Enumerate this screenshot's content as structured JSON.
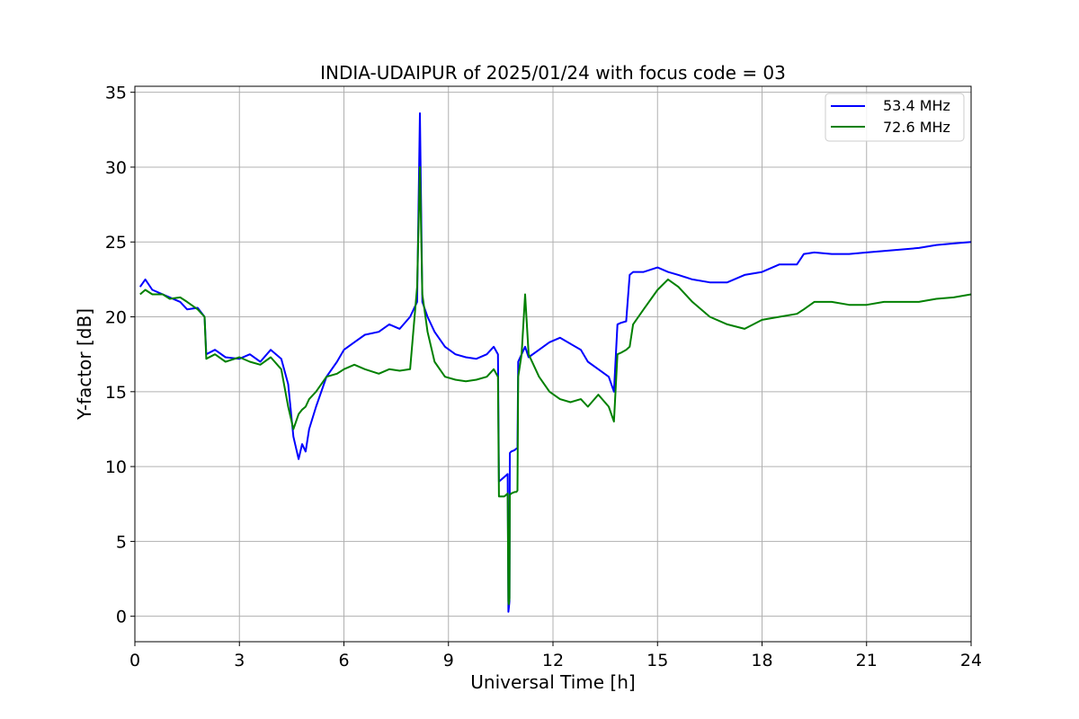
{
  "chart_data": {
    "type": "line",
    "title": "INDIA-UDAIPUR of 2025/01/24 with focus code = 03",
    "xlabel": "Universal Time [h]",
    "ylabel": "Y-factor [dB]",
    "xlim": [
      0,
      24
    ],
    "ylim": [
      -1.7,
      35.4
    ],
    "xticks": [
      0,
      3,
      6,
      9,
      12,
      15,
      18,
      21,
      24
    ],
    "yticks": [
      0,
      5,
      10,
      15,
      20,
      25,
      30,
      35
    ],
    "grid": true,
    "legend_position": "top-right",
    "series": [
      {
        "name": "53.4 MHz",
        "color": "#0000ff",
        "x": [
          0.15,
          0.3,
          0.5,
          0.8,
          1.0,
          1.3,
          1.5,
          1.8,
          2.0,
          2.05,
          2.3,
          2.6,
          3.0,
          3.3,
          3.6,
          3.9,
          4.2,
          4.4,
          4.55,
          4.7,
          4.8,
          4.9,
          5.0,
          5.2,
          5.5,
          5.8,
          6.0,
          6.3,
          6.6,
          7.0,
          7.3,
          7.6,
          7.9,
          8.1,
          8.18,
          8.25,
          8.4,
          8.6,
          8.9,
          9.2,
          9.5,
          9.8,
          10.1,
          10.3,
          10.42,
          10.45,
          10.5,
          10.6,
          10.65,
          10.7,
          10.72,
          10.73,
          10.75,
          10.76,
          10.8,
          10.9,
          10.95,
          10.98,
          11.0,
          11.1,
          11.2,
          11.3,
          11.6,
          11.9,
          12.2,
          12.5,
          12.8,
          13.0,
          13.3,
          13.6,
          13.75,
          13.85,
          13.95,
          14.1,
          14.2,
          14.3,
          14.6,
          15.0,
          15.3,
          15.6,
          16.0,
          16.5,
          17.0,
          17.5,
          18.0,
          18.5,
          19.0,
          19.2,
          19.5,
          20.0,
          20.5,
          21.0,
          21.5,
          22.0,
          22.5,
          23.0,
          23.5,
          24.0
        ],
        "values": [
          22.0,
          22.5,
          21.8,
          21.5,
          21.3,
          21.0,
          20.5,
          20.6,
          20.0,
          17.5,
          17.8,
          17.3,
          17.2,
          17.5,
          17.0,
          17.8,
          17.2,
          15.5,
          12.0,
          10.5,
          11.5,
          11.0,
          12.5,
          14.0,
          16.0,
          17.0,
          17.8,
          18.3,
          18.8,
          19.0,
          19.5,
          19.2,
          20.0,
          21.0,
          33.6,
          21.0,
          20.0,
          19.0,
          18.0,
          17.5,
          17.3,
          17.2,
          17.5,
          18.0,
          17.5,
          9.0,
          9.1,
          9.3,
          9.4,
          9.5,
          0.3,
          0.5,
          1.0,
          10.9,
          11.0,
          11.1,
          11.2,
          11.2,
          17.0,
          17.5,
          18.0,
          17.3,
          17.8,
          18.3,
          18.6,
          18.2,
          17.8,
          17.0,
          16.5,
          16.0,
          15.0,
          19.5,
          19.6,
          19.7,
          22.8,
          23.0,
          23.0,
          23.3,
          23.0,
          22.8,
          22.5,
          22.3,
          22.3,
          22.8,
          23.0,
          23.5,
          23.5,
          24.2,
          24.3,
          24.2,
          24.2,
          24.3,
          24.4,
          24.5,
          24.6,
          24.8,
          24.9,
          25.0
        ]
      },
      {
        "name": "72.6 MHz",
        "color": "#008000",
        "x": [
          0.15,
          0.3,
          0.5,
          0.8,
          1.0,
          1.3,
          1.5,
          1.8,
          2.0,
          2.05,
          2.3,
          2.6,
          3.0,
          3.3,
          3.6,
          3.9,
          4.2,
          4.4,
          4.55,
          4.7,
          4.8,
          4.9,
          5.0,
          5.2,
          5.5,
          5.8,
          6.0,
          6.3,
          6.6,
          7.0,
          7.3,
          7.6,
          7.9,
          8.1,
          8.18,
          8.25,
          8.4,
          8.6,
          8.9,
          9.2,
          9.5,
          9.8,
          10.1,
          10.3,
          10.42,
          10.45,
          10.5,
          10.6,
          10.65,
          10.7,
          10.72,
          10.73,
          10.75,
          10.76,
          10.8,
          10.9,
          10.95,
          10.98,
          11.0,
          11.1,
          11.2,
          11.3,
          11.6,
          11.9,
          12.2,
          12.5,
          12.8,
          13.0,
          13.3,
          13.6,
          13.75,
          13.85,
          13.95,
          14.1,
          14.2,
          14.3,
          14.6,
          15.0,
          15.3,
          15.6,
          16.0,
          16.5,
          17.0,
          17.5,
          18.0,
          18.5,
          19.0,
          19.2,
          19.5,
          20.0,
          20.5,
          21.0,
          21.5,
          22.0,
          22.5,
          23.0,
          23.5,
          24.0
        ],
        "values": [
          21.5,
          21.8,
          21.5,
          21.5,
          21.2,
          21.3,
          21.0,
          20.5,
          20.0,
          17.2,
          17.5,
          17.0,
          17.3,
          17.0,
          16.8,
          17.3,
          16.5,
          14.0,
          12.5,
          13.5,
          13.8,
          14.0,
          14.5,
          15.0,
          16.0,
          16.2,
          16.5,
          16.8,
          16.5,
          16.2,
          16.5,
          16.4,
          16.5,
          22.0,
          30.0,
          21.5,
          19.0,
          17.0,
          16.0,
          15.8,
          15.7,
          15.8,
          16.0,
          16.5,
          16.0,
          8.0,
          8.0,
          8.0,
          8.1,
          8.2,
          1.0,
          0.8,
          1.2,
          8.1,
          8.2,
          8.3,
          8.3,
          8.4,
          16.0,
          17.5,
          21.5,
          17.5,
          16.0,
          15.0,
          14.5,
          14.3,
          14.5,
          14.0,
          14.8,
          14.0,
          13.0,
          17.5,
          17.6,
          17.8,
          18.0,
          19.5,
          20.5,
          21.8,
          22.5,
          22.0,
          21.0,
          20.0,
          19.5,
          19.2,
          19.8,
          20.0,
          20.2,
          20.5,
          21.0,
          21.0,
          20.8,
          20.8,
          21.0,
          21.0,
          21.0,
          21.2,
          21.3,
          21.5
        ]
      }
    ]
  }
}
